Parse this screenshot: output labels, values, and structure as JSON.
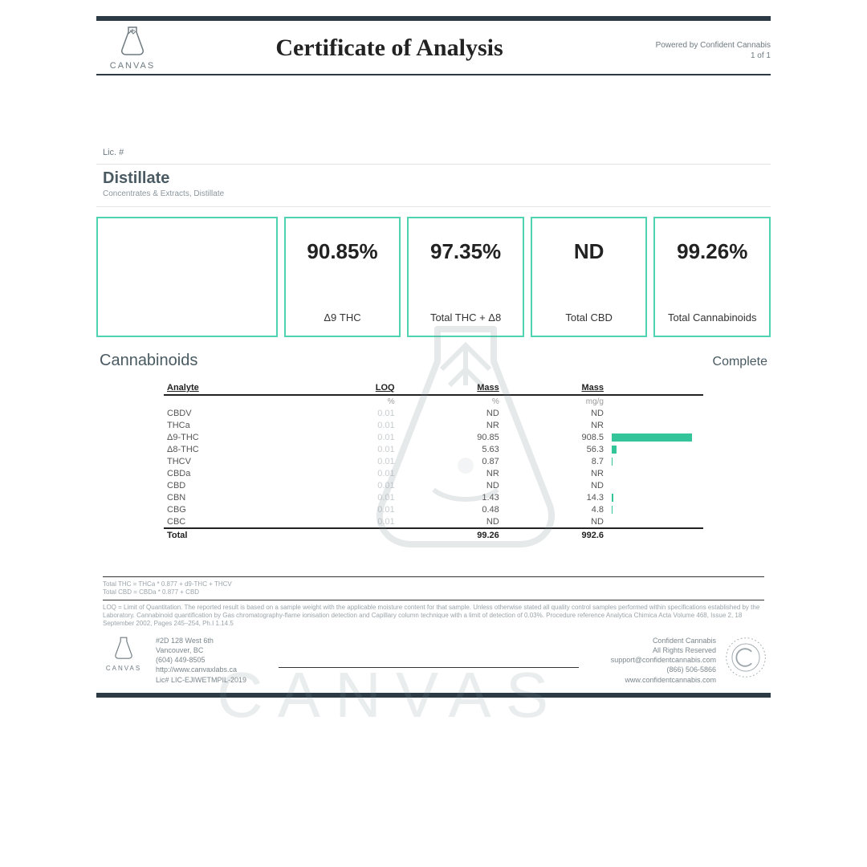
{
  "colors": {
    "rule": "#2b3a44",
    "accent": "#4fd3b0",
    "bar": "#34c49a",
    "text_muted": "#6e7a80",
    "text_light": "#9aa4a9"
  },
  "header": {
    "brand": "CANVAS",
    "title": "Certificate of Analysis",
    "powered_by": "Powered by Confident Cannabis",
    "page_info": "1 of 1"
  },
  "license_label": "Lic. #",
  "sample": {
    "name": "Distillate",
    "subtitle": "Concentrates & Extracts, Distillate"
  },
  "metrics": [
    {
      "value": "",
      "label": ""
    },
    {
      "value": "90.85%",
      "label": "Δ9 THC"
    },
    {
      "value": "97.35%",
      "label": "Total THC + Δ8"
    },
    {
      "value": "ND",
      "label": "Total CBD"
    },
    {
      "value": "99.26%",
      "label": "Total Cannabinoids"
    }
  ],
  "cannabinoids": {
    "section_title": "Cannabinoids",
    "status": "Complete",
    "columns": [
      "Analyte",
      "LOQ",
      "Mass",
      "Mass"
    ],
    "units": [
      "",
      "%",
      "%",
      "mg/g"
    ],
    "bar_max": 100,
    "rows": [
      {
        "analyte": "CBDV",
        "loq": "0.01",
        "mass_pct": "ND",
        "mass_mg": "ND",
        "bar": 0
      },
      {
        "analyte": "THCa",
        "loq": "0.01",
        "mass_pct": "NR",
        "mass_mg": "NR",
        "bar": 0
      },
      {
        "analyte": "Δ9-THC",
        "loq": "0.01",
        "mass_pct": "90.85",
        "mass_mg": "908.5",
        "bar": 90.85
      },
      {
        "analyte": "Δ8-THC",
        "loq": "0.01",
        "mass_pct": "5.63",
        "mass_mg": "56.3",
        "bar": 5.63
      },
      {
        "analyte": "THCV",
        "loq": "0.01",
        "mass_pct": "0.87",
        "mass_mg": "8.7",
        "bar": 0.87
      },
      {
        "analyte": "CBDa",
        "loq": "0.01",
        "mass_pct": "NR",
        "mass_mg": "NR",
        "bar": 0
      },
      {
        "analyte": "CBD",
        "loq": "0.01",
        "mass_pct": "ND",
        "mass_mg": "ND",
        "bar": 0
      },
      {
        "analyte": "CBN",
        "loq": "0.01",
        "mass_pct": "1.43",
        "mass_mg": "14.3",
        "bar": 1.43
      },
      {
        "analyte": "CBG",
        "loq": "0.01",
        "mass_pct": "0.48",
        "mass_mg": "4.8",
        "bar": 0.48
      },
      {
        "analyte": "CBC",
        "loq": "0.01",
        "mass_pct": "ND",
        "mass_mg": "ND",
        "bar": 0
      }
    ],
    "total": {
      "label": "Total",
      "mass_pct": "99.26",
      "mass_mg": "992.6"
    }
  },
  "fineprint": {
    "line1": "Total THC = THCa * 0.877 + d9-THC + THCV",
    "line2": "Total CBD = CBDa * 0.877 + CBD",
    "body": "LOQ = Limit of Quantitation. The reported result is based on a sample weight with the applicable moisture content for that sample. Unless otherwise stated all quality control samples performed within specifications established by the Laboratory. Cannabinoid quantification by Gas chromatography-flame ionisation detection and Capillary column technique with a limit of detection of 0.03%. Procedure reference Analytica Chimica Acta Volume 468, Issue 2, 18 September 2002, Pages 245–254, Ph.I 1.14.5"
  },
  "footer": {
    "lab": {
      "brand": "CANVAS",
      "addr1": "#2D 128 West 6th",
      "addr2": "Vancouver, BC",
      "phone": "(604) 449-8505",
      "url": "http://www.canvaxlabs.ca",
      "lic": "Lic# LIC-EJIWETMPIL-2019"
    },
    "cc": {
      "name": "Confident Cannabis",
      "rights": "All Rights Reserved",
      "email": "support@confidentcannabis.com",
      "phone": "(866) 506-5866",
      "url": "www.confidentcannabis.com"
    }
  },
  "watermark_text": "CANVAS"
}
